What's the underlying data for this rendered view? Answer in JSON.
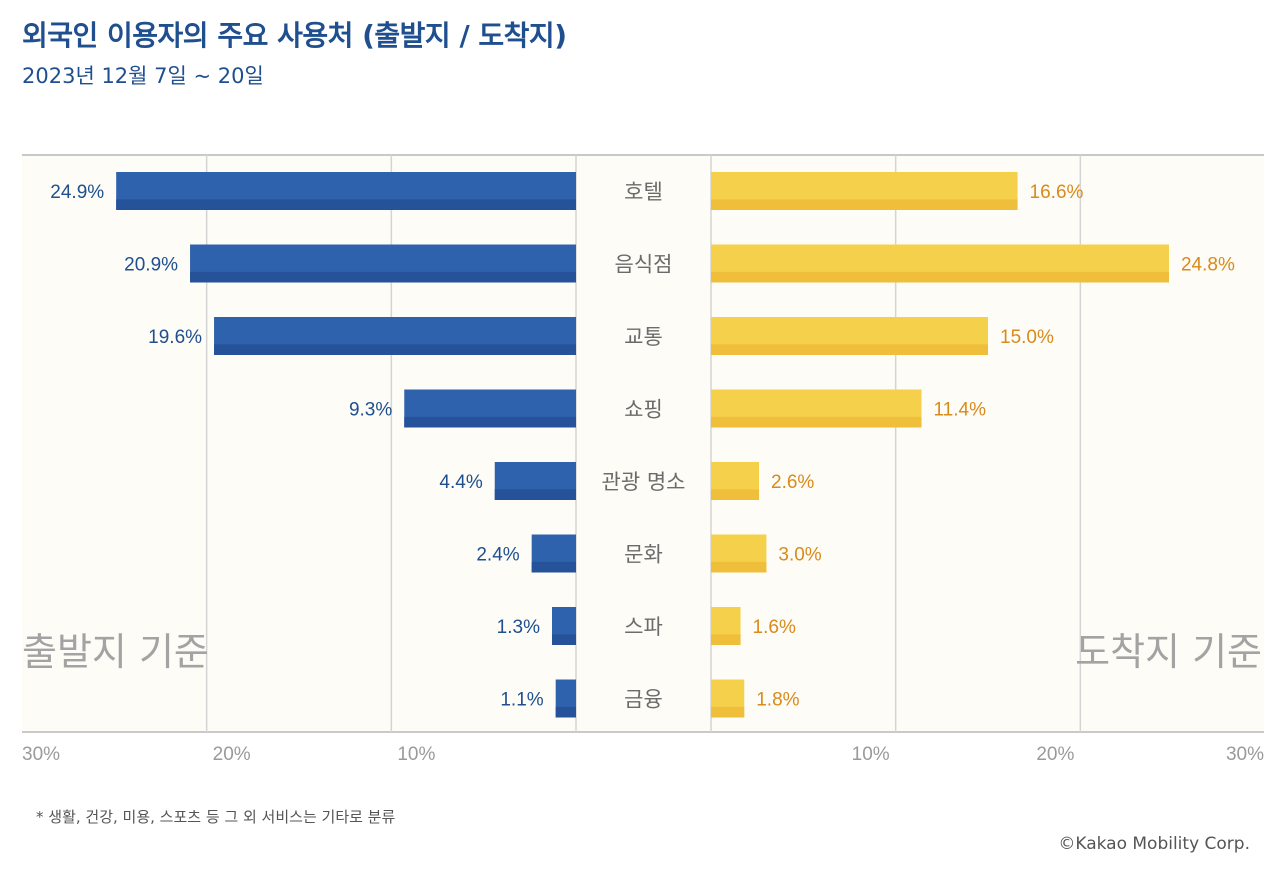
{
  "header": {
    "title": "외국인 이용자의 주요 사용처 (출발지 / 도착지)",
    "subtitle": "2023년 12월 7일 ~ 20일"
  },
  "chart_data": {
    "type": "bar",
    "orientation": "horizontal-diverging",
    "categories": [
      "호텔",
      "음식점",
      "교통",
      "쇼핑",
      "관광 명소",
      "문화",
      "스파",
      "금융"
    ],
    "series": [
      {
        "name": "출발지 기준",
        "values": [
          24.9,
          20.9,
          19.6,
          9.3,
          4.4,
          2.4,
          1.3,
          1.1
        ],
        "color": "#2f62ad",
        "color_dark": "#26529a",
        "direction": "left"
      },
      {
        "name": "도착지 기준",
        "values": [
          16.6,
          24.8,
          15.0,
          11.4,
          2.6,
          3.0,
          1.6,
          1.8
        ],
        "color": "#f5d04a",
        "color_dark": "#efbe3a",
        "direction": "right"
      }
    ],
    "value_labels_left": [
      "24.9%",
      "20.9%",
      "19.6%",
      "9.3%",
      "4.4%",
      "2.4%",
      "1.3%",
      "1.1%"
    ],
    "value_labels_right": [
      "16.6%",
      "24.8%",
      "15.0%",
      "11.4%",
      "2.6%",
      "3.0%",
      "1.6%",
      "1.8%"
    ],
    "axis_left": {
      "ticks": [
        30,
        20,
        10
      ],
      "tick_labels": [
        "30%",
        "20%",
        "10%"
      ],
      "range": [
        0,
        30
      ]
    },
    "axis_right": {
      "ticks": [
        10,
        20,
        30
      ],
      "tick_labels": [
        "10%",
        "20%",
        "30%"
      ],
      "range": [
        0,
        30
      ]
    },
    "left_label": "출발지 기준",
    "right_label": "도착지 기준",
    "grid": true,
    "background": "#fdfcf6"
  },
  "footer": {
    "note": "* 생활, 건강, 미용, 스포츠 등 그 외 서비스는 기타로 분류",
    "copyright": "©Kakao Mobility Corp."
  }
}
